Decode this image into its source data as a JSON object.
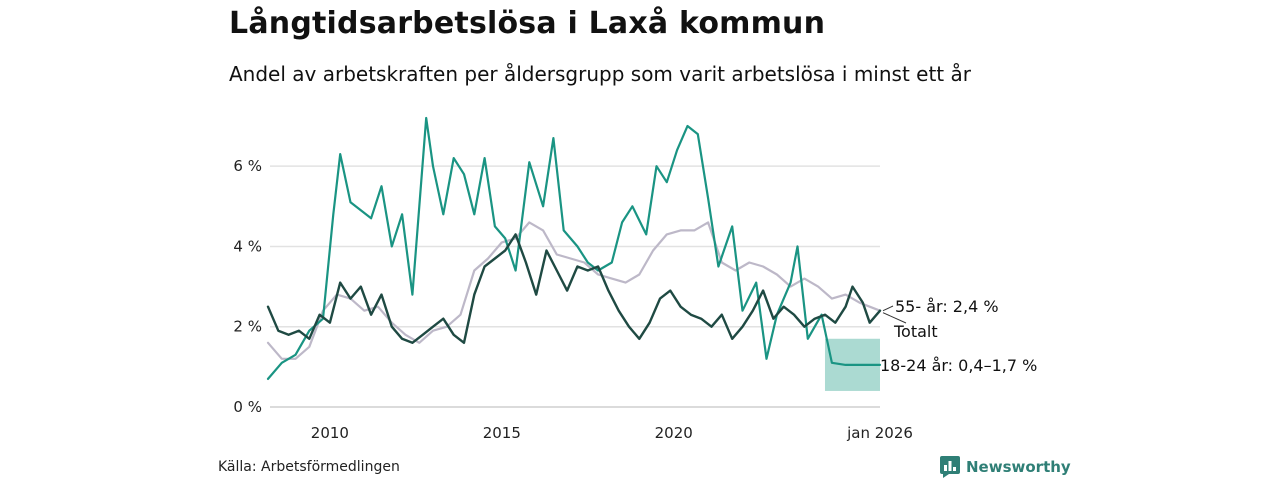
{
  "title": "Långtidsarbetslösa i Laxå kommun",
  "subtitle": "Andel av arbetskraften per åldersgrupp som varit arbetslösa i minst ett år",
  "source": "Källa: Arbetsförmedlingen",
  "brand": "Newsworthy",
  "colors": {
    "total": "#1f4a43",
    "age55": "#bdb8c8",
    "age18_24": "#1a9483",
    "band": "#a6d8d0",
    "grid": "#e2e2e2",
    "brand": "#2f7f76"
  },
  "chart_data": {
    "type": "line",
    "title": "Långtidsarbetslösa i Laxå kommun",
    "ylim": [
      0,
      7.2
    ],
    "xlim": [
      2008.2,
      2026.0
    ],
    "y_ticks": [
      0,
      2,
      4,
      6
    ],
    "y_tick_labels": [
      "0 %",
      "2 %",
      "4 %",
      "6 %"
    ],
    "x_ticks": [
      2010,
      2015,
      2020,
      2026.0
    ],
    "x_tick_labels": [
      "2010",
      "2015",
      "2020",
      "jan 2026"
    ],
    "annotations": {
      "age55": "55- år: 2,4 %",
      "total": "Totalt",
      "age18_24": "18-24 år: 0,4–1,7 %"
    },
    "series": [
      {
        "name": "55- år",
        "key": "age55",
        "points": [
          [
            2008.2,
            1.6
          ],
          [
            2008.6,
            1.2
          ],
          [
            2009.0,
            1.2
          ],
          [
            2009.4,
            1.5
          ],
          [
            2009.8,
            2.4
          ],
          [
            2010.2,
            2.8
          ],
          [
            2010.6,
            2.7
          ],
          [
            2011.0,
            2.4
          ],
          [
            2011.4,
            2.5
          ],
          [
            2011.8,
            2.1
          ],
          [
            2012.2,
            1.8
          ],
          [
            2012.6,
            1.6
          ],
          [
            2013.0,
            1.9
          ],
          [
            2013.4,
            2.0
          ],
          [
            2013.8,
            2.3
          ],
          [
            2014.2,
            3.4
          ],
          [
            2014.6,
            3.7
          ],
          [
            2015.0,
            4.1
          ],
          [
            2015.4,
            4.2
          ],
          [
            2015.8,
            4.6
          ],
          [
            2016.2,
            4.4
          ],
          [
            2016.6,
            3.8
          ],
          [
            2017.0,
            3.7
          ],
          [
            2017.4,
            3.6
          ],
          [
            2017.8,
            3.3
          ],
          [
            2018.2,
            3.2
          ],
          [
            2018.6,
            3.1
          ],
          [
            2019.0,
            3.3
          ],
          [
            2019.4,
            3.9
          ],
          [
            2019.8,
            4.3
          ],
          [
            2020.2,
            4.4
          ],
          [
            2020.6,
            4.4
          ],
          [
            2021.0,
            4.6
          ],
          [
            2021.4,
            3.6
          ],
          [
            2021.8,
            3.4
          ],
          [
            2022.2,
            3.6
          ],
          [
            2022.6,
            3.5
          ],
          [
            2023.0,
            3.3
          ],
          [
            2023.4,
            3.0
          ],
          [
            2023.8,
            3.2
          ],
          [
            2024.2,
            3.0
          ],
          [
            2024.6,
            2.7
          ],
          [
            2025.0,
            2.8
          ],
          [
            2025.4,
            2.6
          ],
          [
            2025.7,
            2.5
          ],
          [
            2026.0,
            2.4
          ]
        ]
      },
      {
        "name": "18-24 år",
        "key": "age18_24",
        "points": [
          [
            2008.2,
            0.7
          ],
          [
            2008.6,
            1.1
          ],
          [
            2009.0,
            1.3
          ],
          [
            2009.4,
            1.9
          ],
          [
            2009.8,
            2.2
          ],
          [
            2010.1,
            4.8
          ],
          [
            2010.3,
            6.3
          ],
          [
            2010.6,
            5.1
          ],
          [
            2010.9,
            4.9
          ],
          [
            2011.2,
            4.7
          ],
          [
            2011.5,
            5.5
          ],
          [
            2011.8,
            4.0
          ],
          [
            2012.1,
            4.8
          ],
          [
            2012.4,
            2.8
          ],
          [
            2012.6,
            5.0
          ],
          [
            2012.8,
            7.2
          ],
          [
            2013.0,
            6.0
          ],
          [
            2013.3,
            4.8
          ],
          [
            2013.6,
            6.2
          ],
          [
            2013.9,
            5.8
          ],
          [
            2014.2,
            4.8
          ],
          [
            2014.5,
            6.2
          ],
          [
            2014.8,
            4.5
          ],
          [
            2015.1,
            4.2
          ],
          [
            2015.4,
            3.4
          ],
          [
            2015.8,
            6.1
          ],
          [
            2016.2,
            5.0
          ],
          [
            2016.5,
            6.7
          ],
          [
            2016.8,
            4.4
          ],
          [
            2017.2,
            4.0
          ],
          [
            2017.5,
            3.6
          ],
          [
            2017.8,
            3.4
          ],
          [
            2018.2,
            3.6
          ],
          [
            2018.5,
            4.6
          ],
          [
            2018.8,
            5.0
          ],
          [
            2019.2,
            4.3
          ],
          [
            2019.5,
            6.0
          ],
          [
            2019.8,
            5.6
          ],
          [
            2020.1,
            6.4
          ],
          [
            2020.4,
            7.0
          ],
          [
            2020.7,
            6.8
          ],
          [
            2021.0,
            5.2
          ],
          [
            2021.3,
            3.5
          ],
          [
            2021.7,
            4.5
          ],
          [
            2022.0,
            2.4
          ],
          [
            2022.4,
            3.1
          ],
          [
            2022.7,
            1.2
          ],
          [
            2023.0,
            2.3
          ],
          [
            2023.4,
            3.1
          ],
          [
            2023.6,
            4.0
          ],
          [
            2023.9,
            1.7
          ],
          [
            2024.3,
            2.3
          ],
          [
            2024.6,
            1.1
          ],
          [
            2025.0,
            1.05
          ],
          [
            2025.5,
            1.05
          ],
          [
            2026.0,
            1.05
          ]
        ]
      },
      {
        "name": "Totalt",
        "key": "total",
        "points": [
          [
            2008.2,
            2.5
          ],
          [
            2008.5,
            1.9
          ],
          [
            2008.8,
            1.8
          ],
          [
            2009.1,
            1.9
          ],
          [
            2009.4,
            1.7
          ],
          [
            2009.7,
            2.3
          ],
          [
            2010.0,
            2.1
          ],
          [
            2010.3,
            3.1
          ],
          [
            2010.6,
            2.7
          ],
          [
            2010.9,
            3.0
          ],
          [
            2011.2,
            2.3
          ],
          [
            2011.5,
            2.8
          ],
          [
            2011.8,
            2.0
          ],
          [
            2012.1,
            1.7
          ],
          [
            2012.4,
            1.6
          ],
          [
            2012.7,
            1.8
          ],
          [
            2013.0,
            2.0
          ],
          [
            2013.3,
            2.2
          ],
          [
            2013.6,
            1.8
          ],
          [
            2013.9,
            1.6
          ],
          [
            2014.2,
            2.8
          ],
          [
            2014.5,
            3.5
          ],
          [
            2014.8,
            3.7
          ],
          [
            2015.1,
            3.9
          ],
          [
            2015.4,
            4.3
          ],
          [
            2015.7,
            3.6
          ],
          [
            2016.0,
            2.8
          ],
          [
            2016.3,
            3.9
          ],
          [
            2016.6,
            3.4
          ],
          [
            2016.9,
            2.9
          ],
          [
            2017.2,
            3.5
          ],
          [
            2017.5,
            3.4
          ],
          [
            2017.8,
            3.5
          ],
          [
            2018.1,
            2.9
          ],
          [
            2018.4,
            2.4
          ],
          [
            2018.7,
            2.0
          ],
          [
            2019.0,
            1.7
          ],
          [
            2019.3,
            2.1
          ],
          [
            2019.6,
            2.7
          ],
          [
            2019.9,
            2.9
          ],
          [
            2020.2,
            2.5
          ],
          [
            2020.5,
            2.3
          ],
          [
            2020.8,
            2.2
          ],
          [
            2021.1,
            2.0
          ],
          [
            2021.4,
            2.3
          ],
          [
            2021.7,
            1.7
          ],
          [
            2022.0,
            2.0
          ],
          [
            2022.3,
            2.4
          ],
          [
            2022.6,
            2.9
          ],
          [
            2022.9,
            2.2
          ],
          [
            2023.2,
            2.5
          ],
          [
            2023.5,
            2.3
          ],
          [
            2023.8,
            2.0
          ],
          [
            2024.1,
            2.2
          ],
          [
            2024.4,
            2.3
          ],
          [
            2024.7,
            2.1
          ],
          [
            2025.0,
            2.5
          ],
          [
            2025.2,
            3.0
          ],
          [
            2025.5,
            2.6
          ],
          [
            2025.7,
            2.1
          ],
          [
            2026.0,
            2.4
          ]
        ]
      }
    ],
    "band": {
      "name": "18-24 år osäkerhetsintervall",
      "x_from": 2024.4,
      "x_to": 2026.0,
      "low": 0.4,
      "high": 1.7
    }
  }
}
